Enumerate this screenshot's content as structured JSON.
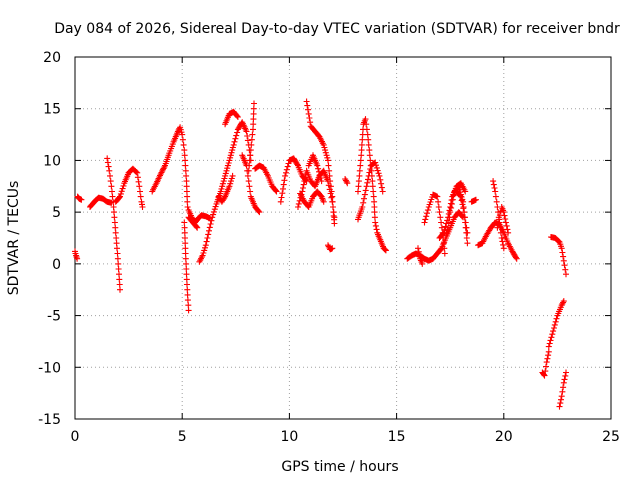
{
  "chart_data": {
    "type": "scatter",
    "title": "Day 084 of 2026, Sidereal Day-to-day VTEC variation (SDTVAR) for receiver bndr",
    "xlabel": "GPS time / hours",
    "ylabel": "SDTVAR / TECUs",
    "xlim": [
      0,
      25
    ],
    "ylim": [
      -15,
      20
    ],
    "xticks": [
      0,
      5,
      10,
      15,
      20,
      25
    ],
    "yticks": [
      -15,
      -10,
      -5,
      0,
      5,
      10,
      15,
      20
    ],
    "grid": true,
    "marker": "+",
    "color": "#ff0000",
    "series": [
      {
        "name": "SDTVAR",
        "segments": [
          [
            [
              0.0,
              1.2
            ],
            [
              0.05,
              0.8
            ],
            [
              0.1,
              0.5
            ]
          ],
          [
            [
              0.12,
              6.5
            ],
            [
              0.2,
              6.3
            ],
            [
              0.3,
              6.2
            ]
          ],
          [
            [
              0.7,
              5.5
            ],
            [
              0.9,
              6.0
            ],
            [
              1.1,
              6.4
            ],
            [
              1.3,
              6.3
            ],
            [
              1.5,
              6.0
            ],
            [
              1.7,
              5.9
            ]
          ],
          [
            [
              1.5,
              10.2
            ],
            [
              1.6,
              9.0
            ],
            [
              1.7,
              7.5
            ],
            [
              1.8,
              5.5
            ],
            [
              1.9,
              3.0
            ],
            [
              2.0,
              0.5
            ],
            [
              2.05,
              -1.0
            ],
            [
              2.1,
              -2.5
            ]
          ],
          [
            [
              1.9,
              6.0
            ],
            [
              2.1,
              6.5
            ],
            [
              2.3,
              7.8
            ],
            [
              2.5,
              8.8
            ],
            [
              2.7,
              9.2
            ],
            [
              2.9,
              8.8
            ],
            [
              3.0,
              7.5
            ],
            [
              3.1,
              6.0
            ],
            [
              3.15,
              5.5
            ]
          ],
          [
            [
              3.6,
              7.0
            ],
            [
              3.8,
              7.8
            ],
            [
              4.0,
              8.7
            ],
            [
              4.2,
              9.5
            ],
            [
              4.4,
              10.7
            ],
            [
              4.6,
              11.8
            ],
            [
              4.8,
              12.8
            ],
            [
              4.9,
              13.2
            ],
            [
              5.0,
              12.5
            ],
            [
              5.1,
              11.0
            ],
            [
              5.2,
              8.0
            ],
            [
              5.25,
              5.5
            ]
          ],
          [
            [
              5.1,
              4.0
            ],
            [
              5.15,
              1.5
            ],
            [
              5.2,
              -1.0
            ],
            [
              5.25,
              -3.0
            ],
            [
              5.3,
              -4.5
            ]
          ],
          [
            [
              5.3,
              5.2
            ],
            [
              5.45,
              4.5
            ],
            [
              5.6,
              4.0
            ],
            [
              5.75,
              4.4
            ],
            [
              5.9,
              4.7
            ],
            [
              6.1,
              4.6
            ],
            [
              6.3,
              4.4
            ]
          ],
          [
            [
              5.3,
              4.5
            ],
            [
              5.5,
              4.0
            ],
            [
              5.7,
              3.5
            ]
          ],
          [
            [
              5.8,
              0.2
            ],
            [
              5.95,
              0.8
            ],
            [
              6.1,
              1.8
            ],
            [
              6.25,
              3.2
            ],
            [
              6.4,
              4.5
            ],
            [
              6.6,
              5.8
            ],
            [
              6.8,
              7.0
            ],
            [
              7.0,
              8.5
            ],
            [
              7.2,
              10.0
            ],
            [
              7.4,
              11.5
            ],
            [
              7.6,
              13.0
            ],
            [
              7.8,
              13.7
            ],
            [
              8.0,
              12.8
            ],
            [
              8.1,
              11.5
            ],
            [
              8.2,
              10.0
            ]
          ],
          [
            [
              7.0,
              13.5
            ],
            [
              7.2,
              14.5
            ],
            [
              7.4,
              14.7
            ],
            [
              7.6,
              14.2
            ]
          ],
          [
            [
              6.7,
              6.5
            ],
            [
              6.85,
              6.0
            ],
            [
              7.0,
              6.5
            ],
            [
              7.2,
              7.5
            ],
            [
              7.35,
              8.5
            ]
          ],
          [
            [
              7.8,
              10.5
            ],
            [
              8.0,
              9.5
            ],
            [
              8.1,
              8.0
            ],
            [
              8.2,
              6.5
            ],
            [
              8.4,
              5.5
            ],
            [
              8.6,
              5.0
            ]
          ],
          [
            [
              8.1,
              9.0
            ],
            [
              8.2,
              11.0
            ],
            [
              8.3,
              13.0
            ],
            [
              8.35,
              15.5
            ]
          ],
          [
            [
              8.4,
              9.2
            ],
            [
              8.6,
              9.5
            ],
            [
              8.8,
              9.3
            ],
            [
              9.0,
              8.5
            ],
            [
              9.2,
              7.5
            ],
            [
              9.4,
              7.0
            ]
          ],
          [
            [
              9.6,
              6.0
            ],
            [
              9.8,
              8.5
            ],
            [
              10.0,
              10.0
            ],
            [
              10.2,
              10.2
            ],
            [
              10.4,
              9.5
            ],
            [
              10.6,
              8.5
            ],
            [
              10.8,
              8.0
            ]
          ],
          [
            [
              10.8,
              15.7
            ],
            [
              10.9,
              14.5
            ],
            [
              11.0,
              13.3
            ],
            [
              11.2,
              12.8
            ],
            [
              11.4,
              12.3
            ],
            [
              11.6,
              11.5
            ],
            [
              11.8,
              10.0
            ],
            [
              11.9,
              8.0
            ],
            [
              12.0,
              6.5
            ],
            [
              12.05,
              5.0
            ],
            [
              12.1,
              3.9
            ]
          ],
          [
            [
              10.4,
              5.5
            ],
            [
              10.6,
              7.0
            ],
            [
              10.8,
              9.0
            ],
            [
              11.0,
              8.0
            ],
            [
              11.2,
              7.5
            ],
            [
              11.4,
              8.5
            ],
            [
              11.6,
              9.0
            ],
            [
              11.8,
              8.0
            ],
            [
              12.0,
              6.0
            ],
            [
              12.1,
              4.5
            ]
          ],
          [
            [
              10.5,
              6.8
            ],
            [
              10.7,
              6.0
            ],
            [
              10.9,
              5.5
            ],
            [
              11.1,
              6.5
            ],
            [
              11.3,
              7.0
            ],
            [
              11.5,
              6.5
            ],
            [
              11.6,
              6.0
            ]
          ],
          [
            [
              10.9,
              9.5
            ],
            [
              11.1,
              10.5
            ],
            [
              11.3,
              9.5
            ],
            [
              11.5,
              8.0
            ]
          ],
          [
            [
              11.8,
              1.8
            ],
            [
              11.9,
              1.4
            ],
            [
              12.0,
              1.5
            ]
          ],
          [
            [
              12.6,
              8.2
            ],
            [
              12.7,
              7.8
            ]
          ],
          [
            [
              13.2,
              7.0
            ],
            [
              13.35,
              10.5
            ],
            [
              13.45,
              13.5
            ],
            [
              13.55,
              14.0
            ],
            [
              13.65,
              12.5
            ],
            [
              13.75,
              10.5
            ],
            [
              13.85,
              8.5
            ],
            [
              13.95,
              6.0
            ],
            [
              14.0,
              4.0
            ],
            [
              14.1,
              3.0
            ],
            [
              14.2,
              2.5
            ],
            [
              14.3,
              2.0
            ],
            [
              14.4,
              1.5
            ],
            [
              14.5,
              1.3
            ]
          ],
          [
            [
              13.2,
              4.3
            ],
            [
              13.4,
              5.5
            ],
            [
              13.6,
              7.5
            ],
            [
              13.8,
              9.5
            ],
            [
              14.0,
              9.8
            ],
            [
              14.2,
              8.5
            ],
            [
              14.35,
              7.0
            ]
          ],
          [
            [
              15.5,
              0.5
            ],
            [
              15.7,
              0.8
            ],
            [
              15.9,
              1.0
            ],
            [
              16.1,
              0.8
            ],
            [
              16.3,
              0.5
            ],
            [
              16.5,
              0.3
            ],
            [
              16.7,
              0.5
            ],
            [
              16.9,
              1.0
            ],
            [
              17.1,
              1.5
            ],
            [
              17.3,
              2.5
            ],
            [
              17.5,
              3.5
            ],
            [
              17.7,
              4.5
            ],
            [
              17.9,
              5.0
            ],
            [
              18.1,
              4.5
            ]
          ],
          [
            [
              16.0,
              1.5
            ],
            [
              16.1,
              0.5
            ],
            [
              16.2,
              0.0
            ]
          ],
          [
            [
              16.3,
              4.0
            ],
            [
              16.5,
              5.5
            ],
            [
              16.7,
              6.7
            ],
            [
              16.9,
              6.5
            ],
            [
              17.0,
              5.0
            ],
            [
              17.15,
              3.0
            ],
            [
              17.25,
              1.0
            ]
          ],
          [
            [
              17.0,
              2.5
            ],
            [
              17.2,
              3.0
            ],
            [
              17.4,
              4.5
            ],
            [
              17.6,
              6.5
            ],
            [
              17.8,
              7.5
            ],
            [
              18.0,
              7.8
            ],
            [
              18.2,
              7.0
            ]
          ],
          [
            [
              17.3,
              2.7
            ],
            [
              17.4,
              3.5
            ],
            [
              17.5,
              5.0
            ],
            [
              17.7,
              7.0
            ],
            [
              17.9,
              7.4
            ],
            [
              18.1,
              6.0
            ],
            [
              18.2,
              4.0
            ],
            [
              18.3,
              2.0
            ]
          ],
          [
            [
              17.8,
              7.0
            ],
            [
              18.0,
              6.5
            ],
            [
              18.15,
              5.0
            ],
            [
              18.3,
              3.0
            ]
          ],
          [
            [
              18.5,
              6.0
            ],
            [
              18.7,
              6.2
            ]
          ],
          [
            [
              18.8,
              1.8
            ],
            [
              19.0,
              2.0
            ],
            [
              19.2,
              2.8
            ],
            [
              19.4,
              3.5
            ],
            [
              19.6,
              4.0
            ],
            [
              19.8,
              3.8
            ],
            [
              20.0,
              3.0
            ],
            [
              20.2,
              2.0
            ],
            [
              20.4,
              1.2
            ],
            [
              20.6,
              0.5
            ]
          ],
          [
            [
              19.5,
              8.0
            ],
            [
              19.6,
              7.0
            ],
            [
              19.7,
              5.5
            ],
            [
              19.8,
              4.0
            ],
            [
              19.9,
              2.5
            ],
            [
              20.0,
              1.5
            ]
          ],
          [
            [
              19.7,
              3.5
            ],
            [
              19.9,
              5.5
            ],
            [
              20.0,
              5.0
            ],
            [
              20.1,
              4.0
            ],
            [
              20.2,
              3.0
            ]
          ],
          [
            [
              21.8,
              -10.5
            ],
            [
              21.9,
              -10.8
            ],
            [
              22.0,
              -9.5
            ],
            [
              22.1,
              -8.5
            ]
          ],
          [
            [
              22.1,
              -8.0
            ],
            [
              22.3,
              -6.5
            ],
            [
              22.5,
              -5.0
            ],
            [
              22.7,
              -4.0
            ],
            [
              22.8,
              -3.6
            ]
          ],
          [
            [
              22.2,
              2.6
            ],
            [
              22.4,
              2.5
            ],
            [
              22.6,
              2.1
            ],
            [
              22.7,
              1.5
            ],
            [
              22.8,
              0.3
            ],
            [
              22.9,
              -1.0
            ]
          ],
          [
            [
              22.6,
              -13.8
            ],
            [
              22.7,
              -12.8
            ],
            [
              22.8,
              -11.5
            ],
            [
              22.9,
              -10.5
            ]
          ]
        ]
      }
    ]
  }
}
